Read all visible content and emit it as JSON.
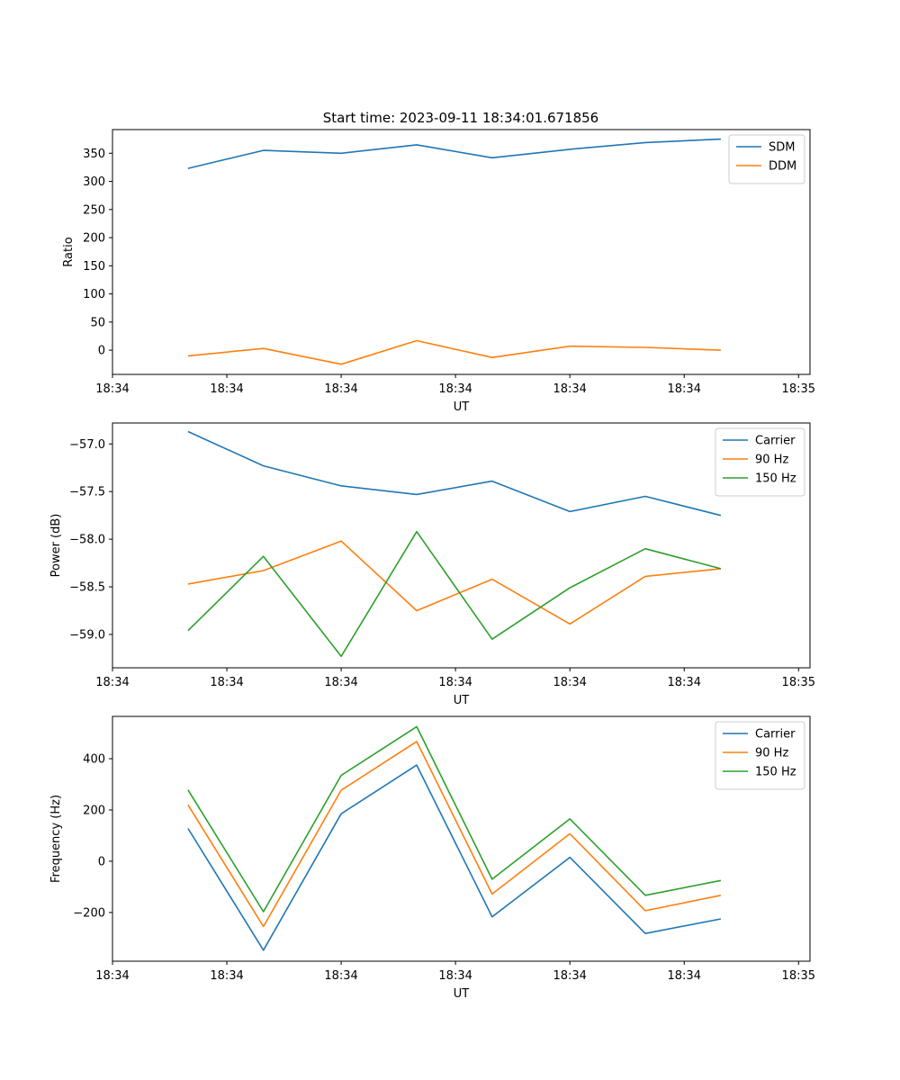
{
  "figure_title": "Start time: 2023-09-11 18:34:01.671856",
  "chart_data": [
    {
      "type": "line",
      "title": "Start time: 2023-09-11 18:34:01.671856",
      "xlabel": "UT",
      "ylabel": "Ratio",
      "x": [
        0.33,
        0.66,
        1.0,
        1.33,
        1.66,
        2.0,
        2.33,
        2.66
      ],
      "xlim": [
        0.0,
        3.05
      ],
      "xticks": [
        0.0,
        0.5,
        1.0,
        1.5,
        2.0,
        2.5,
        3.0
      ],
      "xtick_labels": [
        "18:34",
        "18:34",
        "18:34",
        "18:34",
        "18:34",
        "18:34",
        "18:35"
      ],
      "ylim": [
        -43,
        392
      ],
      "yticks": [
        0,
        50,
        100,
        150,
        200,
        250,
        300,
        350
      ],
      "ytick_labels": [
        "0",
        "50",
        "100",
        "150",
        "200",
        "250",
        "300",
        "350"
      ],
      "legend_position": "top-right",
      "series": [
        {
          "name": "SDM",
          "color": "#1f77b4",
          "values": [
            323,
            355,
            350,
            365,
            342,
            357,
            369,
            375
          ]
        },
        {
          "name": "DDM",
          "color": "#ff7f0e",
          "values": [
            -10,
            3,
            -25,
            17,
            -13,
            7,
            5,
            0
          ]
        }
      ]
    },
    {
      "type": "line",
      "title": "",
      "xlabel": "UT",
      "ylabel": "Power (dB)",
      "x": [
        0.33,
        0.66,
        1.0,
        1.33,
        1.66,
        2.0,
        2.33,
        2.66
      ],
      "xlim": [
        0.0,
        3.05
      ],
      "xticks": [
        0.0,
        0.5,
        1.0,
        1.5,
        2.0,
        2.5,
        3.0
      ],
      "xtick_labels": [
        "18:34",
        "18:34",
        "18:34",
        "18:34",
        "18:34",
        "18:34",
        "18:35"
      ],
      "ylim": [
        -59.35,
        -56.78
      ],
      "yticks": [
        -59.0,
        -58.5,
        -58.0,
        -57.5,
        -57.0
      ],
      "ytick_labels": [
        "−59.0",
        "−58.5",
        "−58.0",
        "−57.5",
        "−57.0"
      ],
      "legend_position": "top-right",
      "series": [
        {
          "name": "Carrier",
          "color": "#1f77b4",
          "values": [
            -56.87,
            -57.23,
            -57.44,
            -57.53,
            -57.39,
            -57.71,
            -57.55,
            -57.75
          ]
        },
        {
          "name": "90 Hz",
          "color": "#ff7f0e",
          "values": [
            -58.47,
            -58.33,
            -58.02,
            -58.75,
            -58.42,
            -58.89,
            -58.39,
            -58.31
          ]
        },
        {
          "name": "150 Hz",
          "color": "#2ca02c",
          "values": [
            -58.96,
            -58.18,
            -59.23,
            -57.92,
            -59.05,
            -58.51,
            -58.1,
            -58.31
          ]
        }
      ]
    },
    {
      "type": "line",
      "title": "",
      "xlabel": "UT",
      "ylabel": "Frequency (Hz)",
      "x": [
        0.33,
        0.66,
        1.0,
        1.33,
        1.66,
        2.0,
        2.33,
        2.66
      ],
      "xlim": [
        0.0,
        3.05
      ],
      "xticks": [
        0.0,
        0.5,
        1.0,
        1.5,
        2.0,
        2.5,
        3.0
      ],
      "xtick_labels": [
        "18:34",
        "18:34",
        "18:34",
        "18:34",
        "18:34",
        "18:34",
        "18:35"
      ],
      "ylim": [
        -390,
        565
      ],
      "yticks": [
        -200,
        0,
        200,
        400
      ],
      "ytick_labels": [
        "−200",
        "0",
        "200",
        "400"
      ],
      "legend_position": "top-right",
      "series": [
        {
          "name": "Carrier",
          "color": "#1f77b4",
          "values": [
            128,
            -347,
            185,
            375,
            -217,
            15,
            -282,
            -225
          ]
        },
        {
          "name": "90 Hz",
          "color": "#ff7f0e",
          "values": [
            220,
            -255,
            277,
            467,
            -128,
            107,
            -193,
            -133
          ]
        },
        {
          "name": "150 Hz",
          "color": "#2ca02c",
          "values": [
            278,
            -197,
            335,
            525,
            -70,
            165,
            -133,
            -75
          ]
        }
      ]
    }
  ]
}
